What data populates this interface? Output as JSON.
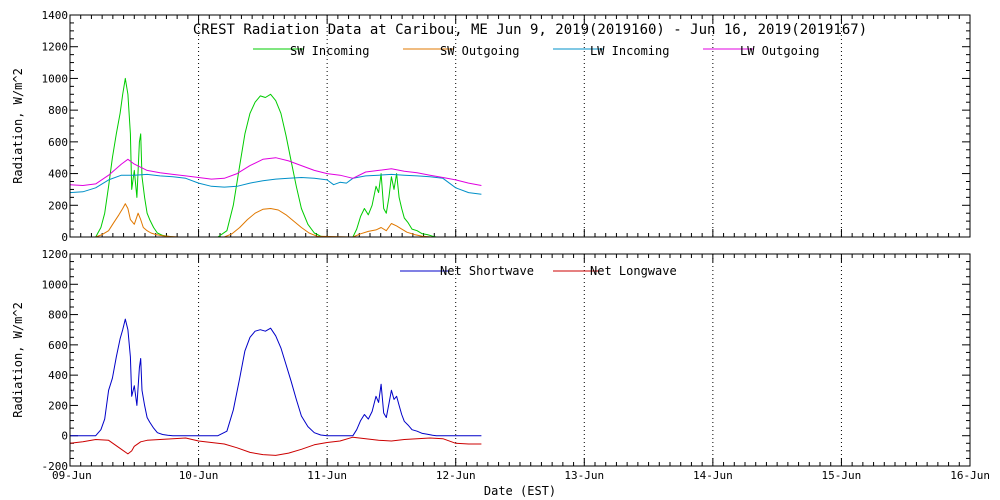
{
  "title": "CREST Radiation Data at Caribou, ME   Jun  9, 2019(2019160) - Jun 16, 2019(2019167)",
  "xlabel": "Date (EST)",
  "colors": {
    "sw_in": "#00cc00",
    "sw_out": "#e07800",
    "lw_in": "#0090c8",
    "lw_out": "#e000e0",
    "net_sw": "#0000c8",
    "net_lw": "#cc0000",
    "grid": "#000000"
  },
  "chart_data": [
    {
      "type": "line",
      "panel": "top",
      "ylabel": "Radiation, W/m^2",
      "ylim": [
        0,
        1400
      ],
      "yticks": [
        0,
        200,
        400,
        600,
        800,
        1000,
        1200,
        1400
      ],
      "xlim": [
        0,
        7
      ],
      "xticks": [
        0,
        1,
        2,
        3,
        4,
        5,
        6,
        7
      ],
      "xticklabels": [
        "09-Jun",
        "10-Jun",
        "11-Jun",
        "12-Jun",
        "13-Jun",
        "14-Jun",
        "15-Jun",
        "16-Jun"
      ],
      "legend": [
        "SW Incoming",
        "SW Outgoing",
        "LW Incoming",
        "LW Outgoing"
      ],
      "series": [
        {
          "name": "SW Incoming",
          "key": "sw_in",
          "x": [
            0.2,
            0.24,
            0.27,
            0.3,
            0.33,
            0.36,
            0.39,
            0.41,
            0.43,
            0.45,
            0.47,
            0.48,
            0.5,
            0.52,
            0.54,
            0.55,
            0.56,
            0.58,
            0.6,
            0.62,
            0.65,
            0.68,
            0.72,
            0.76,
            0.8,
            0.85,
            1.0,
            1.15,
            1.22,
            1.27,
            1.32,
            1.36,
            1.4,
            1.44,
            1.48,
            1.52,
            1.56,
            1.6,
            1.64,
            1.68,
            1.72,
            1.76,
            1.8,
            1.85,
            1.9,
            1.95,
            2.0,
            2.1,
            2.2,
            2.23,
            2.26,
            2.29,
            2.32,
            2.35,
            2.38,
            2.4,
            2.42,
            2.44,
            2.46,
            2.48,
            2.5,
            2.52,
            2.54,
            2.56,
            2.58,
            2.6,
            2.63,
            2.66,
            2.7,
            2.74,
            2.78,
            2.82,
            2.85
          ],
          "values": [
            0,
            60,
            150,
            320,
            500,
            650,
            780,
            900,
            1000,
            900,
            650,
            300,
            420,
            250,
            600,
            650,
            380,
            250,
            150,
            110,
            60,
            25,
            10,
            5,
            0,
            0,
            0,
            0,
            40,
            200,
            450,
            650,
            780,
            850,
            890,
            880,
            900,
            860,
            780,
            640,
            480,
            320,
            180,
            80,
            25,
            5,
            0,
            0,
            0,
            50,
            130,
            180,
            140,
            200,
            320,
            280,
            400,
            180,
            150,
            250,
            380,
            300,
            400,
            250,
            180,
            120,
            90,
            50,
            40,
            20,
            15,
            5,
            0
          ]
        },
        {
          "name": "SW Outgoing",
          "key": "sw_out",
          "x": [
            0.2,
            0.25,
            0.3,
            0.34,
            0.38,
            0.41,
            0.43,
            0.45,
            0.47,
            0.5,
            0.53,
            0.55,
            0.57,
            0.6,
            0.63,
            0.67,
            0.72,
            0.78,
            0.85,
            1.2,
            1.26,
            1.32,
            1.38,
            1.44,
            1.5,
            1.56,
            1.62,
            1.68,
            1.74,
            1.8,
            1.86,
            1.92,
            2.2,
            2.26,
            2.32,
            2.38,
            2.42,
            2.46,
            2.5,
            2.54,
            2.58,
            2.62,
            2.68,
            2.74,
            2.82
          ],
          "values": [
            0,
            15,
            40,
            90,
            140,
            180,
            210,
            180,
            110,
            80,
            150,
            110,
            60,
            40,
            25,
            15,
            8,
            3,
            0,
            0,
            20,
            60,
            110,
            150,
            175,
            180,
            170,
            140,
            100,
            60,
            25,
            5,
            0,
            20,
            35,
            45,
            60,
            40,
            85,
            70,
            50,
            30,
            15,
            5,
            0
          ]
        },
        {
          "name": "LW Incoming",
          "key": "lw_in",
          "x": [
            0.0,
            0.1,
            0.2,
            0.3,
            0.4,
            0.5,
            0.6,
            0.7,
            0.8,
            0.9,
            1.0,
            1.1,
            1.2,
            1.3,
            1.4,
            1.5,
            1.6,
            1.7,
            1.8,
            1.9,
            2.0,
            2.05,
            2.1,
            2.15,
            2.2,
            2.3,
            2.4,
            2.5,
            2.6,
            2.7,
            2.8,
            2.9,
            3.0,
            3.1,
            3.2
          ],
          "values": [
            280,
            285,
            310,
            360,
            390,
            390,
            395,
            385,
            380,
            370,
            340,
            320,
            315,
            320,
            340,
            355,
            365,
            370,
            375,
            370,
            360,
            330,
            345,
            340,
            370,
            385,
            390,
            395,
            390,
            385,
            380,
            370,
            310,
            280,
            270
          ]
        },
        {
          "name": "LW Outgoing",
          "key": "lw_out",
          "x": [
            0.0,
            0.1,
            0.2,
            0.3,
            0.4,
            0.45,
            0.5,
            0.6,
            0.7,
            0.8,
            0.9,
            1.0,
            1.1,
            1.2,
            1.3,
            1.4,
            1.5,
            1.6,
            1.7,
            1.8,
            1.9,
            2.0,
            2.1,
            2.2,
            2.3,
            2.4,
            2.5,
            2.6,
            2.7,
            2.8,
            2.9,
            3.0,
            3.1,
            3.2
          ],
          "values": [
            330,
            325,
            335,
            390,
            460,
            490,
            460,
            420,
            405,
            395,
            385,
            375,
            365,
            370,
            400,
            450,
            490,
            500,
            480,
            450,
            420,
            400,
            390,
            370,
            410,
            420,
            430,
            415,
            405,
            390,
            375,
            360,
            340,
            325
          ]
        }
      ]
    },
    {
      "type": "line",
      "panel": "bottom",
      "ylabel": "Radiation, W/m^2",
      "ylim": [
        -200,
        1200
      ],
      "yticks": [
        -200,
        0,
        200,
        400,
        600,
        800,
        1000,
        1200
      ],
      "xlim": [
        0,
        7
      ],
      "xticks": [
        0,
        1,
        2,
        3,
        4,
        5,
        6,
        7
      ],
      "xticklabels": [
        "09-Jun",
        "10-Jun",
        "11-Jun",
        "12-Jun",
        "13-Jun",
        "14-Jun",
        "15-Jun",
        "16-Jun"
      ],
      "legend": [
        "Net Shortwave",
        "Net Longwave"
      ],
      "series": [
        {
          "name": "Net Shortwave",
          "key": "net_sw",
          "x": [
            0.0,
            0.15,
            0.2,
            0.24,
            0.27,
            0.3,
            0.33,
            0.36,
            0.39,
            0.41,
            0.43,
            0.45,
            0.47,
            0.48,
            0.5,
            0.52,
            0.54,
            0.55,
            0.56,
            0.58,
            0.6,
            0.62,
            0.65,
            0.68,
            0.72,
            0.76,
            0.8,
            0.85,
            1.0,
            1.15,
            1.22,
            1.27,
            1.32,
            1.36,
            1.4,
            1.44,
            1.48,
            1.52,
            1.56,
            1.6,
            1.64,
            1.68,
            1.72,
            1.76,
            1.8,
            1.85,
            1.9,
            1.95,
            2.0,
            2.1,
            2.2,
            2.23,
            2.26,
            2.29,
            2.32,
            2.35,
            2.38,
            2.4,
            2.42,
            2.44,
            2.46,
            2.48,
            2.5,
            2.52,
            2.54,
            2.56,
            2.58,
            2.6,
            2.63,
            2.66,
            2.7,
            2.74,
            2.78,
            2.82,
            2.85,
            3.0,
            3.2
          ],
          "values": [
            0,
            0,
            0,
            40,
            110,
            300,
            380,
            520,
            640,
            700,
            770,
            700,
            520,
            260,
            330,
            200,
            450,
            510,
            300,
            200,
            120,
            90,
            50,
            20,
            8,
            3,
            0,
            0,
            0,
            0,
            30,
            170,
            380,
            560,
            650,
            690,
            700,
            690,
            710,
            660,
            580,
            470,
            360,
            240,
            130,
            60,
            20,
            5,
            0,
            0,
            0,
            40,
            100,
            140,
            110,
            160,
            260,
            220,
            340,
            150,
            120,
            210,
            300,
            240,
            260,
            200,
            140,
            95,
            70,
            40,
            30,
            15,
            10,
            3,
            0,
            0,
            0
          ]
        },
        {
          "name": "Net Longwave",
          "key": "net_lw",
          "x": [
            0.0,
            0.1,
            0.2,
            0.3,
            0.35,
            0.4,
            0.45,
            0.48,
            0.5,
            0.55,
            0.6,
            0.7,
            0.8,
            0.9,
            1.0,
            1.1,
            1.2,
            1.3,
            1.4,
            1.5,
            1.6,
            1.7,
            1.8,
            1.9,
            2.0,
            2.1,
            2.2,
            2.3,
            2.4,
            2.5,
            2.6,
            2.7,
            2.8,
            2.9,
            3.0,
            3.1,
            3.2
          ],
          "values": [
            -50,
            -40,
            -25,
            -30,
            -60,
            -90,
            -120,
            -100,
            -70,
            -40,
            -30,
            -25,
            -20,
            -15,
            -35,
            -45,
            -55,
            -80,
            -110,
            -125,
            -130,
            -115,
            -90,
            -60,
            -45,
            -35,
            -10,
            -20,
            -30,
            -35,
            -25,
            -20,
            -15,
            -20,
            -50,
            -55,
            -55
          ]
        }
      ]
    }
  ]
}
